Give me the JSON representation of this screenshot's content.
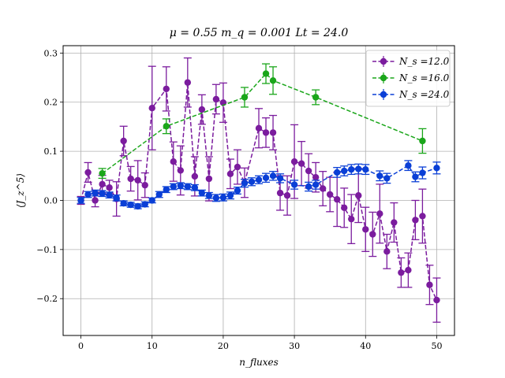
{
  "chart_data": {
    "type": "scatter",
    "title": "μ = 0.55 m_q = 0.001 Lt = 24.0",
    "xlabel": "n_fluxes",
    "ylabel": "⟨J_z^5⟩",
    "xlim": [
      -2.5,
      52.5
    ],
    "ylim": [
      -0.275,
      0.315
    ],
    "x_ticks": [
      0,
      10,
      20,
      30,
      40,
      50
    ],
    "y_ticks": [
      -0.2,
      -0.1,
      0.0,
      0.1,
      0.2,
      0.3
    ],
    "x_tick_labels": [
      "0",
      "10",
      "20",
      "30",
      "40",
      "50"
    ],
    "y_tick_labels": [
      "−0.2",
      "−0.1",
      "0.0",
      "0.1",
      "0.2",
      "0.3"
    ],
    "grid": true,
    "legend_position": "top-right",
    "series": [
      {
        "name": "N_s =12.0",
        "color": "#7b1c9e",
        "line": "dashed",
        "points": [
          {
            "x": 0,
            "y": 0.0,
            "err": 0.008
          },
          {
            "x": 1,
            "y": 0.057,
            "err": 0.02
          },
          {
            "x": 2,
            "y": 0.0,
            "err": 0.013
          },
          {
            "x": 3,
            "y": 0.033,
            "err": 0.018
          },
          {
            "x": 4,
            "y": 0.026,
            "err": 0.015
          },
          {
            "x": 5,
            "y": 0.003,
            "err": 0.035
          },
          {
            "x": 6,
            "y": 0.121,
            "err": 0.03
          },
          {
            "x": 7,
            "y": 0.044,
            "err": 0.025
          },
          {
            "x": 8,
            "y": 0.041,
            "err": 0.04
          },
          {
            "x": 9,
            "y": 0.031,
            "err": 0.025
          },
          {
            "x": 10,
            "y": 0.188,
            "err": 0.085
          },
          {
            "x": 12,
            "y": 0.227,
            "err": 0.045
          },
          {
            "x": 13,
            "y": 0.079,
            "err": 0.04
          },
          {
            "x": 14,
            "y": 0.061,
            "err": 0.05
          },
          {
            "x": 15,
            "y": 0.24,
            "err": 0.05
          },
          {
            "x": 16,
            "y": 0.049,
            "err": 0.04
          },
          {
            "x": 17,
            "y": 0.185,
            "err": 0.03
          },
          {
            "x": 18,
            "y": 0.044,
            "err": 0.045
          },
          {
            "x": 19,
            "y": 0.206,
            "err": 0.03
          },
          {
            "x": 20,
            "y": 0.199,
            "err": 0.04
          },
          {
            "x": 21,
            "y": 0.054,
            "err": 0.03
          },
          {
            "x": 22,
            "y": 0.068,
            "err": 0.035
          },
          {
            "x": 23,
            "y": 0.036,
            "err": 0.03
          },
          {
            "x": 25,
            "y": 0.147,
            "err": 0.04
          },
          {
            "x": 26,
            "y": 0.138,
            "err": 0.03
          },
          {
            "x": 27,
            "y": 0.138,
            "err": 0.035
          },
          {
            "x": 28,
            "y": 0.015,
            "err": 0.035
          },
          {
            "x": 29,
            "y": 0.01,
            "err": 0.04
          },
          {
            "x": 30,
            "y": 0.079,
            "err": 0.075
          },
          {
            "x": 31,
            "y": 0.075,
            "err": 0.045
          },
          {
            "x": 32,
            "y": 0.06,
            "err": 0.035
          },
          {
            "x": 33,
            "y": 0.047,
            "err": 0.03
          },
          {
            "x": 34,
            "y": 0.024,
            "err": 0.035
          },
          {
            "x": 35,
            "y": 0.012,
            "err": 0.035
          },
          {
            "x": 36,
            "y": 0.002,
            "err": 0.055
          },
          {
            "x": 37,
            "y": -0.015,
            "err": 0.04
          },
          {
            "x": 38,
            "y": -0.038,
            "err": 0.05
          },
          {
            "x": 39,
            "y": 0.01,
            "err": 0.055
          },
          {
            "x": 40,
            "y": -0.059,
            "err": 0.045
          },
          {
            "x": 41,
            "y": -0.069,
            "err": 0.045
          },
          {
            "x": 42,
            "y": -0.027,
            "err": 0.06
          },
          {
            "x": 43,
            "y": -0.104,
            "err": 0.035
          },
          {
            "x": 44,
            "y": -0.045,
            "err": 0.04
          },
          {
            "x": 45,
            "y": -0.147,
            "err": 0.03
          },
          {
            "x": 46,
            "y": -0.142,
            "err": 0.035
          },
          {
            "x": 47,
            "y": -0.04,
            "err": 0.04
          },
          {
            "x": 48,
            "y": -0.032,
            "err": 0.055
          },
          {
            "x": 49,
            "y": -0.172,
            "err": 0.04
          },
          {
            "x": 50,
            "y": -0.203,
            "err": 0.045
          }
        ]
      },
      {
        "name": "N_s =16.0",
        "color": "#1aa61a",
        "line": "dashed",
        "points": [
          {
            "x": 3,
            "y": 0.055,
            "err": 0.01
          },
          {
            "x": 12,
            "y": 0.151,
            "err": 0.015
          },
          {
            "x": 23,
            "y": 0.21,
            "err": 0.02
          },
          {
            "x": 26,
            "y": 0.258,
            "err": 0.02
          },
          {
            "x": 27,
            "y": 0.244,
            "err": 0.028
          },
          {
            "x": 33,
            "y": 0.21,
            "err": 0.015
          },
          {
            "x": 48,
            "y": 0.121,
            "err": 0.025
          }
        ]
      },
      {
        "name": "N_s =24.0",
        "color": "#0a3fd6",
        "line": "dashed",
        "points": [
          {
            "x": 0,
            "y": 0.0,
            "err": 0.006
          },
          {
            "x": 1,
            "y": 0.012,
            "err": 0.006
          },
          {
            "x": 2,
            "y": 0.015,
            "err": 0.006
          },
          {
            "x": 3,
            "y": 0.014,
            "err": 0.006
          },
          {
            "x": 4,
            "y": 0.011,
            "err": 0.006
          },
          {
            "x": 5,
            "y": 0.005,
            "err": 0.006
          },
          {
            "x": 6,
            "y": -0.006,
            "err": 0.005
          },
          {
            "x": 7,
            "y": -0.009,
            "err": 0.005
          },
          {
            "x": 8,
            "y": -0.012,
            "err": 0.005
          },
          {
            "x": 9,
            "y": -0.008,
            "err": 0.005
          },
          {
            "x": 10,
            "y": 0.0,
            "err": 0.005
          },
          {
            "x": 11,
            "y": 0.012,
            "err": 0.006
          },
          {
            "x": 12,
            "y": 0.022,
            "err": 0.006
          },
          {
            "x": 13,
            "y": 0.028,
            "err": 0.006
          },
          {
            "x": 14,
            "y": 0.03,
            "err": 0.006
          },
          {
            "x": 15,
            "y": 0.028,
            "err": 0.006
          },
          {
            "x": 16,
            "y": 0.026,
            "err": 0.006
          },
          {
            "x": 17,
            "y": 0.015,
            "err": 0.006
          },
          {
            "x": 18,
            "y": 0.01,
            "err": 0.006
          },
          {
            "x": 19,
            "y": 0.005,
            "err": 0.007
          },
          {
            "x": 20,
            "y": 0.006,
            "err": 0.007
          },
          {
            "x": 21,
            "y": 0.01,
            "err": 0.007
          },
          {
            "x": 22,
            "y": 0.02,
            "err": 0.007
          },
          {
            "x": 23,
            "y": 0.035,
            "err": 0.008
          },
          {
            "x": 24,
            "y": 0.038,
            "err": 0.008
          },
          {
            "x": 25,
            "y": 0.042,
            "err": 0.008
          },
          {
            "x": 26,
            "y": 0.046,
            "err": 0.009
          },
          {
            "x": 27,
            "y": 0.05,
            "err": 0.009
          },
          {
            "x": 28,
            "y": 0.045,
            "err": 0.009
          },
          {
            "x": 30,
            "y": 0.032,
            "err": 0.009
          },
          {
            "x": 32,
            "y": 0.028,
            "err": 0.009
          },
          {
            "x": 33,
            "y": 0.032,
            "err": 0.009
          },
          {
            "x": 36,
            "y": 0.057,
            "err": 0.01
          },
          {
            "x": 37,
            "y": 0.06,
            "err": 0.01
          },
          {
            "x": 38,
            "y": 0.063,
            "err": 0.01
          },
          {
            "x": 39,
            "y": 0.064,
            "err": 0.01
          },
          {
            "x": 40,
            "y": 0.063,
            "err": 0.01
          },
          {
            "x": 42,
            "y": 0.05,
            "err": 0.01
          },
          {
            "x": 43,
            "y": 0.045,
            "err": 0.01
          },
          {
            "x": 46,
            "y": 0.071,
            "err": 0.01
          },
          {
            "x": 47,
            "y": 0.048,
            "err": 0.01
          },
          {
            "x": 48,
            "y": 0.056,
            "err": 0.012
          },
          {
            "x": 50,
            "y": 0.066,
            "err": 0.012
          }
        ]
      }
    ]
  }
}
